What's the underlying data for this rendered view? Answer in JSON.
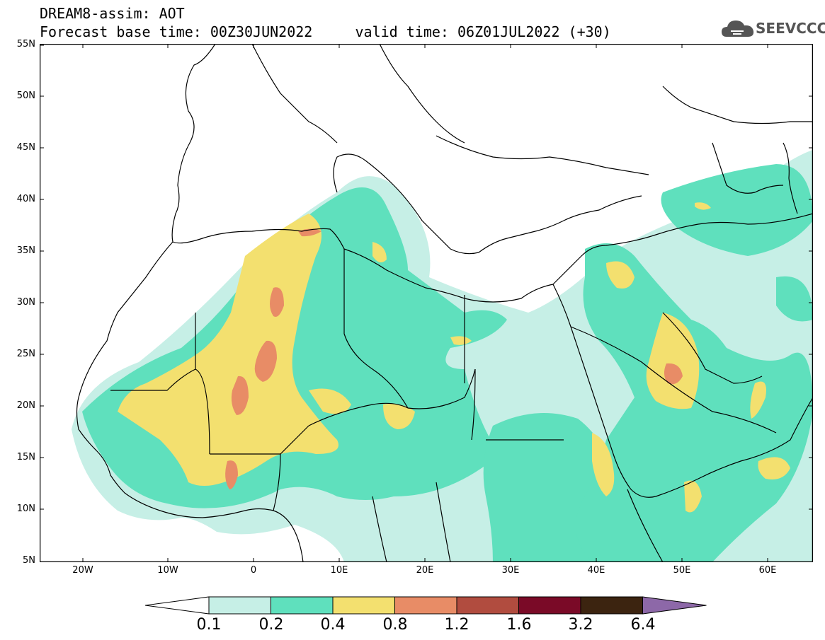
{
  "header": {
    "line1": "DREAM8-assim: AOT",
    "line2": "Forecast base time: 00Z30JUN2022     valid time: 06Z01JUL2022 (+30)"
  },
  "logo": {
    "text": "SEEVCCC",
    "icon": "cloud-icon"
  },
  "map": {
    "lat_labels": [
      "55N",
      "50N",
      "45N",
      "40N",
      "35N",
      "30N",
      "25N",
      "20N",
      "15N",
      "10N",
      "5N"
    ],
    "lon_labels": [
      "20W",
      "10W",
      "0",
      "10E",
      "20E",
      "30E",
      "40E",
      "50E",
      "60E"
    ]
  },
  "colorbar": {
    "labels": [
      "0.1",
      "0.2",
      "0.4",
      "0.8",
      "1.2",
      "1.6",
      "3.2",
      "6.4"
    ],
    "colors": [
      "#ffffff",
      "#c6efe6",
      "#5fe0bd",
      "#f3e06f",
      "#e88c66",
      "#b14c3f",
      "#7a0a27",
      "#3c2410",
      "#8d68a8"
    ]
  },
  "palette": {
    "light_cyan": "#c6efe6",
    "green": "#5fe0bd",
    "yellow": "#f3e06f",
    "salmon": "#e88c66",
    "dark_red": "#c05a45"
  }
}
